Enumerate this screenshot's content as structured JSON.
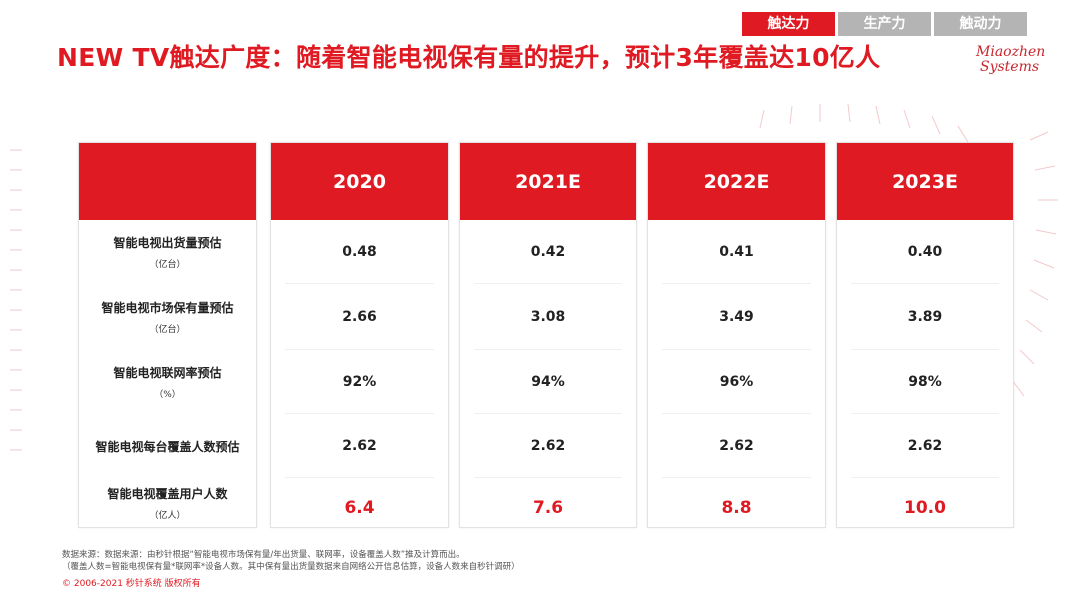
{
  "tabs": [
    {
      "label": "触达力",
      "active": true
    },
    {
      "label": "生产力",
      "active": false
    },
    {
      "label": "触动力",
      "active": false
    }
  ],
  "title": "NEW TV触达广度：随着智能电视保有量的提升，预计3年覆盖达10亿人",
  "logo": {
    "line1": "Miaozhen",
    "line2": "Systems"
  },
  "table": {
    "years": [
      "2020",
      "2021E",
      "2022E",
      "2023E"
    ],
    "rows": [
      {
        "label": "智能电视出货量预估",
        "unit": "（亿台）",
        "values": [
          "0.48",
          "0.42",
          "0.41",
          "0.40"
        ]
      },
      {
        "label": "智能电视市场保有量预估",
        "unit": "（亿台）",
        "values": [
          "2.66",
          "3.08",
          "3.49",
          "3.89"
        ]
      },
      {
        "label": "智能电视联网率预估",
        "unit": "（%）",
        "values": [
          "92%",
          "94%",
          "96%",
          "98%"
        ]
      },
      {
        "label": "智能电视每台覆盖人数预估",
        "unit": "",
        "values": [
          "2.62",
          "2.62",
          "2.62",
          "2.62"
        ]
      },
      {
        "label": "智能电视覆盖用户人数",
        "unit": "（亿人）",
        "values": [
          "6.4",
          "7.6",
          "8.8",
          "10.0"
        ]
      }
    ]
  },
  "notes": {
    "line1": "数据来源：数据来源：由秒针根据“智能电视市场保有量/年出货量、联网率，设备覆盖人数”推及计算而出。",
    "line2": "（覆盖人数=智能电视保有量*联网率*设备人数。其中保有量出货量数据来自网络公开信息估算，设备人数来自秒针调研）"
  },
  "copyright": "© 2006-2021 秒针系统 版权所有",
  "colors": {
    "accent": "#e01a22",
    "tab_inactive": "#b4b4b4"
  }
}
